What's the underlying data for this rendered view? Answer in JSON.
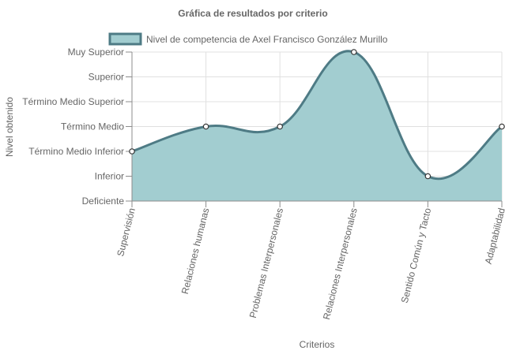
{
  "chart_data": {
    "type": "area",
    "title": "Gráfica de resultados por criterio",
    "xlabel": "Criterios",
    "ylabel": "Nivel obtenido",
    "y_levels": [
      "Deficiente",
      "Inferior",
      "Término Medio Inferior",
      "Término Medio",
      "Término Medio Superior",
      "Superior",
      "Muy Superior"
    ],
    "categories": [
      "Supervisión",
      "Relaciones humanas",
      "Problemas Interpersonales",
      "Relaciones Interpersonales",
      "Sentido Común y Tacto",
      "Adaptabilidad"
    ],
    "series": [
      {
        "name": "Nivel de competencia de Axel Francisco González Murillo",
        "values": [
          2,
          3,
          3,
          6,
          1,
          3
        ]
      }
    ],
    "ylim": [
      0,
      6
    ],
    "grid": true,
    "legend_position": "top",
    "colors": {
      "fill": "#a2cdd0",
      "line": "#4e7b85",
      "grid": "#e0e0e0",
      "axis": "#8c8c8c",
      "text": "#666666"
    }
  }
}
